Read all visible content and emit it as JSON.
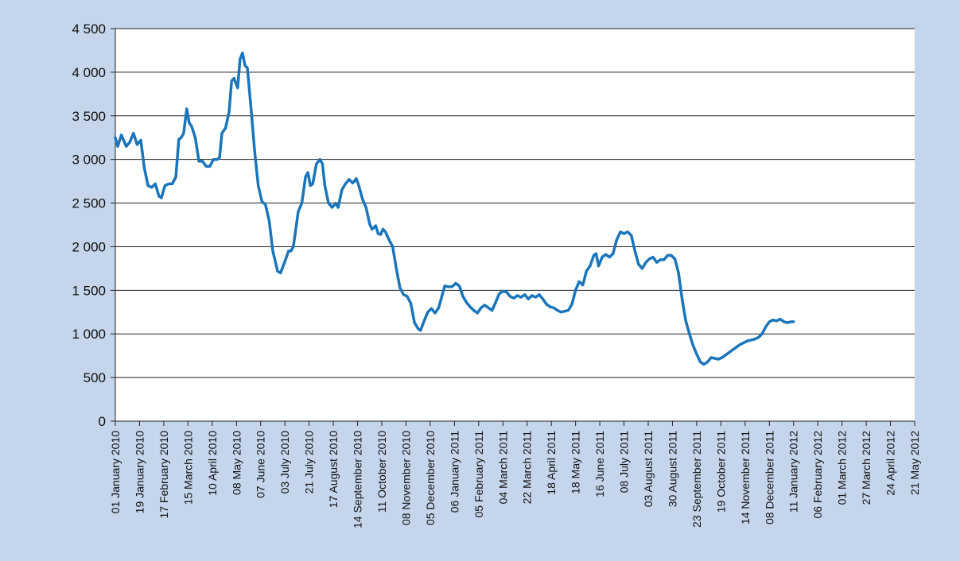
{
  "chart_data": {
    "type": "line",
    "title": "",
    "xlabel": "",
    "ylabel": "",
    "ylim": [
      0,
      4500
    ],
    "grid": "horizontal",
    "legend": "none",
    "y_ticks": [
      "0",
      "500",
      "1 000",
      "1 500",
      "2 000",
      "2 500",
      "3 000",
      "3 500",
      "4 000",
      "4 500"
    ],
    "x_ticks": [
      "01 January 2010",
      "19 January 2010",
      "17 February 2010",
      "15 March 2010",
      "10 April 2010",
      "08 May 2010",
      "07 June 2010",
      "03 July 2010",
      "21 July 2010",
      "17 August 2010",
      "14 September 2010",
      "11 October 2010",
      "08 November 2010",
      "05 December 2010",
      "06 January 2011",
      "05 February 2011",
      "04 March 2011",
      "22 March 2011",
      "18 April 2011",
      "18 May 2011",
      "16 June 2011",
      "08 July 2011",
      "03 August 2011",
      "30 August 2011",
      "23 September 2011",
      "19 October 2011",
      "14 November 2011",
      "08 December 2011",
      "11 January 2012",
      "06 February 2012",
      "01 March 2012",
      "27 March 2012",
      "24 April 2012",
      "21 May 2012"
    ],
    "colors": {
      "line": "#1b75bb",
      "background": "#c4d5ec",
      "plot_area": "#ffffff"
    },
    "series": [
      {
        "values": [
          [
            0,
            3250
          ],
          [
            0.1,
            3150
          ],
          [
            0.25,
            3280
          ],
          [
            0.45,
            3150
          ],
          [
            0.6,
            3200
          ],
          [
            0.75,
            3300
          ],
          [
            0.9,
            3170
          ],
          [
            1.05,
            3220
          ],
          [
            1.2,
            2900
          ],
          [
            1.35,
            2700
          ],
          [
            1.5,
            2680
          ],
          [
            1.65,
            2720
          ],
          [
            1.8,
            2580
          ],
          [
            1.9,
            2560
          ],
          [
            2.05,
            2700
          ],
          [
            2.2,
            2720
          ],
          [
            2.35,
            2720
          ],
          [
            2.5,
            2800
          ],
          [
            2.62,
            3230
          ],
          [
            2.72,
            3250
          ],
          [
            2.82,
            3300
          ],
          [
            2.95,
            3580
          ],
          [
            3.05,
            3420
          ],
          [
            3.15,
            3380
          ],
          [
            3.3,
            3250
          ],
          [
            3.45,
            2980
          ],
          [
            3.6,
            2980
          ],
          [
            3.75,
            2920
          ],
          [
            3.9,
            2920
          ],
          [
            4.05,
            3000
          ],
          [
            4.2,
            3000
          ],
          [
            4.3,
            3020
          ],
          [
            4.4,
            3300
          ],
          [
            4.55,
            3360
          ],
          [
            4.7,
            3550
          ],
          [
            4.8,
            3900
          ],
          [
            4.9,
            3930
          ],
          [
            5.05,
            3820
          ],
          [
            5.15,
            4150
          ],
          [
            5.25,
            4220
          ],
          [
            5.35,
            4080
          ],
          [
            5.45,
            4050
          ],
          [
            5.6,
            3600
          ],
          [
            5.75,
            3100
          ],
          [
            5.9,
            2700
          ],
          [
            6.05,
            2520
          ],
          [
            6.2,
            2480
          ],
          [
            6.35,
            2300
          ],
          [
            6.5,
            1950
          ],
          [
            6.7,
            1720
          ],
          [
            6.82,
            1700
          ],
          [
            7.0,
            1830
          ],
          [
            7.15,
            1950
          ],
          [
            7.25,
            1950
          ],
          [
            7.35,
            2000
          ],
          [
            7.45,
            2200
          ],
          [
            7.55,
            2400
          ],
          [
            7.7,
            2500
          ],
          [
            7.85,
            2800
          ],
          [
            7.95,
            2850
          ],
          [
            8.05,
            2700
          ],
          [
            8.15,
            2720
          ],
          [
            8.3,
            2950
          ],
          [
            8.45,
            3000
          ],
          [
            8.55,
            2950
          ],
          [
            8.65,
            2700
          ],
          [
            8.8,
            2500
          ],
          [
            8.95,
            2450
          ],
          [
            9.1,
            2500
          ],
          [
            9.2,
            2450
          ],
          [
            9.35,
            2650
          ],
          [
            9.5,
            2720
          ],
          [
            9.65,
            2770
          ],
          [
            9.8,
            2730
          ],
          [
            9.95,
            2780
          ],
          [
            10.05,
            2700
          ],
          [
            10.2,
            2550
          ],
          [
            10.35,
            2450
          ],
          [
            10.5,
            2260
          ],
          [
            10.6,
            2200
          ],
          [
            10.75,
            2240
          ],
          [
            10.85,
            2150
          ],
          [
            10.95,
            2140
          ],
          [
            11.05,
            2200
          ],
          [
            11.15,
            2170
          ],
          [
            11.3,
            2080
          ],
          [
            11.45,
            2000
          ],
          [
            11.6,
            1750
          ],
          [
            11.75,
            1530
          ],
          [
            11.9,
            1450
          ],
          [
            12.05,
            1430
          ],
          [
            12.2,
            1350
          ],
          [
            12.35,
            1130
          ],
          [
            12.5,
            1060
          ],
          [
            12.6,
            1040
          ],
          [
            12.75,
            1150
          ],
          [
            12.9,
            1250
          ],
          [
            13.05,
            1290
          ],
          [
            13.2,
            1240
          ],
          [
            13.35,
            1300
          ],
          [
            13.5,
            1450
          ],
          [
            13.6,
            1550
          ],
          [
            13.75,
            1540
          ],
          [
            13.9,
            1540
          ],
          [
            14.05,
            1580
          ],
          [
            14.2,
            1550
          ],
          [
            14.35,
            1430
          ],
          [
            14.5,
            1360
          ],
          [
            14.65,
            1310
          ],
          [
            14.8,
            1270
          ],
          [
            14.95,
            1240
          ],
          [
            15.1,
            1300
          ],
          [
            15.25,
            1330
          ],
          [
            15.4,
            1300
          ],
          [
            15.55,
            1270
          ],
          [
            15.7,
            1360
          ],
          [
            15.85,
            1460
          ],
          [
            16.0,
            1490
          ],
          [
            16.15,
            1480
          ],
          [
            16.3,
            1430
          ],
          [
            16.45,
            1410
          ],
          [
            16.6,
            1440
          ],
          [
            16.75,
            1420
          ],
          [
            16.9,
            1450
          ],
          [
            17.05,
            1400
          ],
          [
            17.2,
            1440
          ],
          [
            17.35,
            1420
          ],
          [
            17.5,
            1450
          ],
          [
            17.65,
            1400
          ],
          [
            17.8,
            1340
          ],
          [
            17.95,
            1310
          ],
          [
            18.1,
            1300
          ],
          [
            18.25,
            1270
          ],
          [
            18.4,
            1250
          ],
          [
            18.55,
            1260
          ],
          [
            18.7,
            1270
          ],
          [
            18.85,
            1340
          ],
          [
            19.0,
            1500
          ],
          [
            19.15,
            1600
          ],
          [
            19.3,
            1560
          ],
          [
            19.45,
            1720
          ],
          [
            19.6,
            1780
          ],
          [
            19.75,
            1900
          ],
          [
            19.85,
            1920
          ],
          [
            19.95,
            1780
          ],
          [
            20.1,
            1880
          ],
          [
            20.25,
            1910
          ],
          [
            20.4,
            1880
          ],
          [
            20.55,
            1920
          ],
          [
            20.7,
            2080
          ],
          [
            20.85,
            2170
          ],
          [
            21.0,
            2150
          ],
          [
            21.15,
            2170
          ],
          [
            21.3,
            2130
          ],
          [
            21.45,
            1950
          ],
          [
            21.6,
            1800
          ],
          [
            21.75,
            1750
          ],
          [
            21.9,
            1820
          ],
          [
            22.05,
            1860
          ],
          [
            22.2,
            1880
          ],
          [
            22.35,
            1820
          ],
          [
            22.5,
            1850
          ],
          [
            22.65,
            1850
          ],
          [
            22.8,
            1900
          ],
          [
            22.95,
            1900
          ],
          [
            23.1,
            1860
          ],
          [
            23.25,
            1700
          ],
          [
            23.4,
            1400
          ],
          [
            23.55,
            1150
          ],
          [
            23.7,
            1000
          ],
          [
            23.85,
            870
          ],
          [
            24.0,
            770
          ],
          [
            24.15,
            680
          ],
          [
            24.3,
            650
          ],
          [
            24.45,
            680
          ],
          [
            24.6,
            730
          ],
          [
            24.75,
            720
          ],
          [
            24.9,
            710
          ],
          [
            25.05,
            730
          ],
          [
            25.2,
            760
          ],
          [
            25.35,
            790
          ],
          [
            25.5,
            820
          ],
          [
            25.65,
            850
          ],
          [
            25.8,
            880
          ],
          [
            25.95,
            900
          ],
          [
            26.1,
            920
          ],
          [
            26.25,
            930
          ],
          [
            26.4,
            940
          ],
          [
            26.55,
            960
          ],
          [
            26.7,
            1000
          ],
          [
            26.85,
            1080
          ],
          [
            27.0,
            1140
          ],
          [
            27.15,
            1160
          ],
          [
            27.3,
            1150
          ],
          [
            27.45,
            1170
          ],
          [
            27.6,
            1140
          ],
          [
            27.75,
            1130
          ],
          [
            27.9,
            1140
          ],
          [
            28.0,
            1140
          ]
        ]
      }
    ]
  }
}
